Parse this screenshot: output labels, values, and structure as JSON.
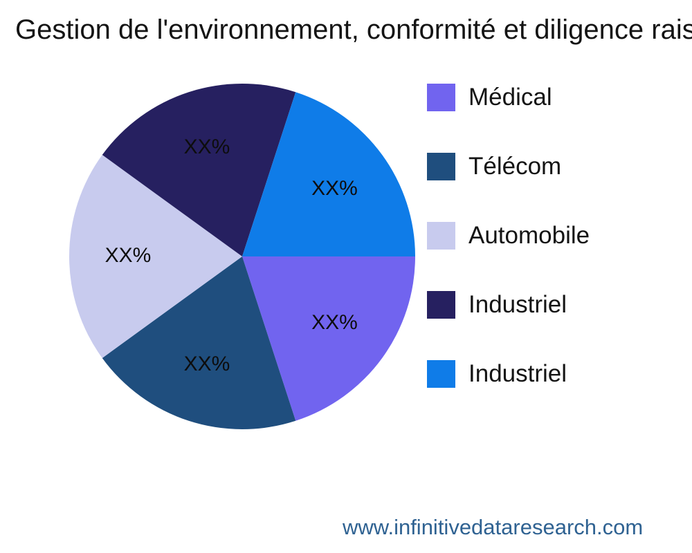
{
  "page": {
    "watermark": "www.infinitivedataresearch.com"
  },
  "colors": {
    "background": "#ffffff",
    "title_text": "#141414",
    "legend_text": "#141414",
    "slice_label_text": "#0d0d0d",
    "watermark_text": "#2f6292"
  },
  "chart_data": {
    "type": "pie",
    "title": "Gestion de l'environnement, conformité et diligence rais",
    "legend_position": "right",
    "start_angle_deg": 0,
    "direction": "clockwise",
    "label_radius_fraction": 0.66,
    "slices": [
      {
        "label": "Médical",
        "value": 20,
        "display_label": "XX%",
        "color": "#7164ef"
      },
      {
        "label": "Télécom",
        "value": 20,
        "display_label": "XX%",
        "color": "#1f4e7e"
      },
      {
        "label": "Automobile",
        "value": 20,
        "display_label": "XX%",
        "color": "#c8cbee"
      },
      {
        "label": "Industriel",
        "value": 20,
        "display_label": "XX%",
        "color": "#262060"
      },
      {
        "label": "Industriel",
        "value": 20,
        "display_label": "XX%",
        "color": "#0f7ce8"
      }
    ]
  }
}
